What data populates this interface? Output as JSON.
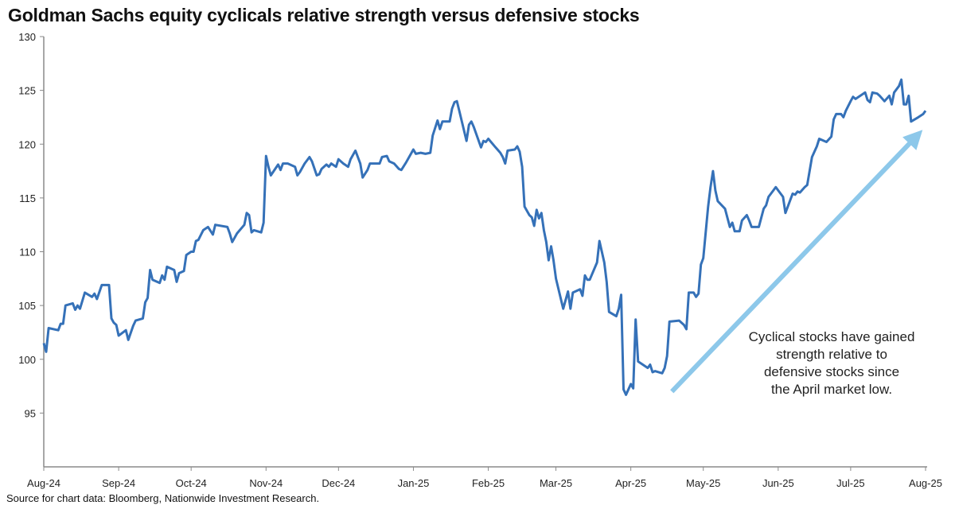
{
  "chart_data": {
    "type": "line",
    "title": "Goldman Sachs equity cyclicals relative strength versus defensive stocks",
    "xlabel": "",
    "ylabel": "",
    "ylim": [
      90,
      130
    ],
    "yticks": [
      95,
      100,
      105,
      110,
      115,
      120,
      125,
      130
    ],
    "xlim": [
      "2024-08-01",
      "2025-08-01"
    ],
    "xticks": [
      {
        "date": "2024-08-01",
        "label": "Aug-24"
      },
      {
        "date": "2024-09-01",
        "label": "Sep-24"
      },
      {
        "date": "2024-10-01",
        "label": "Oct-24"
      },
      {
        "date": "2024-11-01",
        "label": "Nov-24"
      },
      {
        "date": "2024-12-01",
        "label": "Dec-24"
      },
      {
        "date": "2025-01-01",
        "label": "Jan-25"
      },
      {
        "date": "2025-02-01",
        "label": "Feb-25"
      },
      {
        "date": "2025-03-01",
        "label": "Mar-25"
      },
      {
        "date": "2025-04-01",
        "label": "Apr-25"
      },
      {
        "date": "2025-05-01",
        "label": "May-25"
      },
      {
        "date": "2025-06-01",
        "label": "Jun-25"
      },
      {
        "date": "2025-07-01",
        "label": "Jul-25"
      },
      {
        "date": "2025-08-01",
        "label": "Aug-25"
      }
    ],
    "grid": false,
    "line_color": "#3571B8",
    "series": [
      {
        "points": [
          [
            "2024-08-01",
            101.5
          ],
          [
            "2024-08-02",
            100.7
          ],
          [
            "2024-08-03",
            102.9
          ],
          [
            "2024-08-07",
            102.7
          ],
          [
            "2024-08-08",
            103.3
          ],
          [
            "2024-08-09",
            103.3
          ],
          [
            "2024-08-10",
            105.0
          ],
          [
            "2024-08-13",
            105.2
          ],
          [
            "2024-08-14",
            104.6
          ],
          [
            "2024-08-15",
            105.0
          ],
          [
            "2024-08-16",
            104.7
          ],
          [
            "2024-08-18",
            106.2
          ],
          [
            "2024-08-21",
            105.8
          ],
          [
            "2024-08-22",
            106.1
          ],
          [
            "2024-08-23",
            105.6
          ],
          [
            "2024-08-25",
            106.9
          ],
          [
            "2024-08-28",
            106.9
          ],
          [
            "2024-08-29",
            103.8
          ],
          [
            "2024-08-30",
            103.4
          ],
          [
            "2024-08-31",
            103.2
          ],
          [
            "2024-09-01",
            102.2
          ],
          [
            "2024-09-04",
            102.7
          ],
          [
            "2024-09-05",
            101.8
          ],
          [
            "2024-09-07",
            103.1
          ],
          [
            "2024-09-08",
            103.6
          ],
          [
            "2024-09-11",
            103.8
          ],
          [
            "2024-09-12",
            105.3
          ],
          [
            "2024-09-13",
            105.7
          ],
          [
            "2024-09-14",
            108.3
          ],
          [
            "2024-09-15",
            107.4
          ],
          [
            "2024-09-18",
            107.1
          ],
          [
            "2024-09-19",
            107.8
          ],
          [
            "2024-09-20",
            107.4
          ],
          [
            "2024-09-21",
            108.6
          ],
          [
            "2024-09-24",
            108.3
          ],
          [
            "2024-09-25",
            107.2
          ],
          [
            "2024-09-26",
            108.0
          ],
          [
            "2024-09-28",
            108.2
          ],
          [
            "2024-09-29",
            109.7
          ],
          [
            "2024-10-01",
            110.0
          ],
          [
            "2024-10-02",
            110.0
          ],
          [
            "2024-10-03",
            111.0
          ],
          [
            "2024-10-04",
            111.1
          ],
          [
            "2024-10-06",
            112.0
          ],
          [
            "2024-10-08",
            112.3
          ],
          [
            "2024-10-10",
            111.6
          ],
          [
            "2024-10-11",
            112.5
          ],
          [
            "2024-10-16",
            112.3
          ],
          [
            "2024-10-17",
            111.7
          ],
          [
            "2024-10-18",
            110.9
          ],
          [
            "2024-10-20",
            111.7
          ],
          [
            "2024-10-23",
            112.5
          ],
          [
            "2024-10-24",
            113.6
          ],
          [
            "2024-10-25",
            113.4
          ],
          [
            "2024-10-26",
            111.8
          ],
          [
            "2024-10-27",
            112.0
          ],
          [
            "2024-10-30",
            111.8
          ],
          [
            "2024-10-31",
            112.7
          ],
          [
            "2024-11-01",
            118.9
          ],
          [
            "2024-11-02",
            117.9
          ],
          [
            "2024-11-03",
            117.1
          ],
          [
            "2024-11-06",
            118.1
          ],
          [
            "2024-11-07",
            117.6
          ],
          [
            "2024-11-08",
            118.2
          ],
          [
            "2024-11-10",
            118.2
          ],
          [
            "2024-11-13",
            117.9
          ],
          [
            "2024-11-14",
            117.1
          ],
          [
            "2024-11-15",
            117.4
          ],
          [
            "2024-11-17",
            118.2
          ],
          [
            "2024-11-19",
            118.8
          ],
          [
            "2024-11-20",
            118.4
          ],
          [
            "2024-11-22",
            117.1
          ],
          [
            "2024-11-23",
            117.2
          ],
          [
            "2024-11-24",
            117.7
          ],
          [
            "2024-11-26",
            118.1
          ],
          [
            "2024-11-27",
            117.9
          ],
          [
            "2024-11-28",
            118.2
          ],
          [
            "2024-11-30",
            117.9
          ],
          [
            "2024-12-01",
            118.6
          ],
          [
            "2024-12-03",
            118.2
          ],
          [
            "2024-12-05",
            117.9
          ],
          [
            "2024-12-06",
            118.6
          ],
          [
            "2024-12-08",
            119.4
          ],
          [
            "2024-12-10",
            118.2
          ],
          [
            "2024-12-11",
            116.9
          ],
          [
            "2024-12-13",
            117.6
          ],
          [
            "2024-12-14",
            118.2
          ],
          [
            "2024-12-18",
            118.2
          ],
          [
            "2024-12-19",
            118.8
          ],
          [
            "2024-12-21",
            118.9
          ],
          [
            "2024-12-22",
            118.4
          ],
          [
            "2024-12-24",
            118.2
          ],
          [
            "2024-12-26",
            117.7
          ],
          [
            "2024-12-27",
            117.6
          ],
          [
            "2024-12-29",
            118.3
          ],
          [
            "2025-01-01",
            119.5
          ],
          [
            "2025-01-02",
            119.1
          ],
          [
            "2025-01-04",
            119.2
          ],
          [
            "2025-01-06",
            119.1
          ],
          [
            "2025-01-08",
            119.2
          ],
          [
            "2025-01-09",
            120.8
          ],
          [
            "2025-01-11",
            122.2
          ],
          [
            "2025-01-12",
            121.4
          ],
          [
            "2025-01-13",
            122.1
          ],
          [
            "2025-01-16",
            122.1
          ],
          [
            "2025-01-17",
            123.3
          ],
          [
            "2025-01-18",
            123.9
          ],
          [
            "2025-01-19",
            124.0
          ],
          [
            "2025-01-20",
            123.1
          ],
          [
            "2025-01-23",
            120.3
          ],
          [
            "2025-01-24",
            121.8
          ],
          [
            "2025-01-25",
            122.1
          ],
          [
            "2025-01-26",
            121.6
          ],
          [
            "2025-01-29",
            119.7
          ],
          [
            "2025-01-30",
            120.3
          ],
          [
            "2025-01-31",
            120.2
          ],
          [
            "2025-02-01",
            120.5
          ],
          [
            "2025-02-04",
            119.7
          ],
          [
            "2025-02-06",
            119.2
          ],
          [
            "2025-02-07",
            118.8
          ],
          [
            "2025-02-08",
            118.2
          ],
          [
            "2025-02-09",
            119.4
          ],
          [
            "2025-02-12",
            119.5
          ],
          [
            "2025-02-13",
            119.8
          ],
          [
            "2025-02-14",
            119.3
          ],
          [
            "2025-02-15",
            117.9
          ],
          [
            "2025-02-16",
            114.2
          ],
          [
            "2025-02-18",
            113.4
          ],
          [
            "2025-02-19",
            113.2
          ],
          [
            "2025-02-20",
            112.4
          ],
          [
            "2025-02-21",
            113.9
          ],
          [
            "2025-02-22",
            113.1
          ],
          [
            "2025-02-23",
            113.6
          ],
          [
            "2025-02-24",
            112.0
          ],
          [
            "2025-02-25",
            110.9
          ],
          [
            "2025-02-26",
            109.2
          ],
          [
            "2025-02-27",
            110.5
          ],
          [
            "2025-02-28",
            109.2
          ],
          [
            "2025-03-01",
            107.5
          ],
          [
            "2025-03-04",
            104.7
          ],
          [
            "2025-03-06",
            106.3
          ],
          [
            "2025-03-07",
            104.7
          ],
          [
            "2025-03-08",
            106.2
          ],
          [
            "2025-03-11",
            106.5
          ],
          [
            "2025-03-12",
            105.9
          ],
          [
            "2025-03-13",
            107.8
          ],
          [
            "2025-03-14",
            107.4
          ],
          [
            "2025-03-15",
            107.4
          ],
          [
            "2025-03-18",
            109.0
          ],
          [
            "2025-03-19",
            111.0
          ],
          [
            "2025-03-21",
            109.0
          ],
          [
            "2025-03-22",
            107.2
          ],
          [
            "2025-03-23",
            104.4
          ],
          [
            "2025-03-26",
            104.0
          ],
          [
            "2025-03-27",
            104.7
          ],
          [
            "2025-03-28",
            106.0
          ],
          [
            "2025-03-29",
            97.2
          ],
          [
            "2025-03-30",
            96.7
          ],
          [
            "2025-04-01",
            97.7
          ],
          [
            "2025-04-02",
            97.3
          ],
          [
            "2025-04-03",
            103.7
          ],
          [
            "2025-04-04",
            99.8
          ],
          [
            "2025-04-08",
            99.2
          ],
          [
            "2025-04-09",
            99.5
          ],
          [
            "2025-04-10",
            98.8
          ],
          [
            "2025-04-11",
            98.9
          ],
          [
            "2025-04-14",
            98.7
          ],
          [
            "2025-04-15",
            99.2
          ],
          [
            "2025-04-16",
            100.3
          ],
          [
            "2025-04-17",
            103.5
          ],
          [
            "2025-04-21",
            103.6
          ],
          [
            "2025-04-23",
            103.2
          ],
          [
            "2025-04-24",
            102.8
          ],
          [
            "2025-04-25",
            106.2
          ],
          [
            "2025-04-27",
            106.2
          ],
          [
            "2025-04-28",
            105.8
          ],
          [
            "2025-04-29",
            106.1
          ],
          [
            "2025-04-30",
            108.8
          ],
          [
            "2025-05-01",
            109.4
          ],
          [
            "2025-05-03",
            114.2
          ],
          [
            "2025-05-04",
            116.0
          ],
          [
            "2025-05-05",
            117.5
          ],
          [
            "2025-05-06",
            115.7
          ],
          [
            "2025-05-07",
            114.7
          ],
          [
            "2025-05-10",
            114.0
          ],
          [
            "2025-05-12",
            112.3
          ],
          [
            "2025-05-13",
            112.7
          ],
          [
            "2025-05-14",
            111.9
          ],
          [
            "2025-05-16",
            111.9
          ],
          [
            "2025-05-17",
            112.9
          ],
          [
            "2025-05-19",
            113.4
          ],
          [
            "2025-05-20",
            112.9
          ],
          [
            "2025-05-21",
            112.3
          ],
          [
            "2025-05-24",
            112.3
          ],
          [
            "2025-05-26",
            114.0
          ],
          [
            "2025-05-27",
            114.3
          ],
          [
            "2025-05-28",
            115.1
          ],
          [
            "2025-05-30",
            115.7
          ],
          [
            "2025-05-31",
            116.0
          ],
          [
            "2025-06-01",
            115.7
          ],
          [
            "2025-06-03",
            115.1
          ],
          [
            "2025-06-04",
            113.6
          ],
          [
            "2025-06-07",
            115.4
          ],
          [
            "2025-06-08",
            115.3
          ],
          [
            "2025-06-09",
            115.6
          ],
          [
            "2025-06-10",
            115.5
          ],
          [
            "2025-06-12",
            116.0
          ],
          [
            "2025-06-13",
            116.2
          ],
          [
            "2025-06-15",
            118.8
          ],
          [
            "2025-06-17",
            119.8
          ],
          [
            "2025-06-18",
            120.5
          ],
          [
            "2025-06-21",
            120.2
          ],
          [
            "2025-06-23",
            120.7
          ],
          [
            "2025-06-24",
            122.3
          ],
          [
            "2025-06-25",
            122.8
          ],
          [
            "2025-06-27",
            122.8
          ],
          [
            "2025-06-28",
            122.5
          ],
          [
            "2025-06-29",
            123.1
          ],
          [
            "2025-07-01",
            124.0
          ],
          [
            "2025-07-02",
            124.4
          ],
          [
            "2025-07-03",
            124.2
          ],
          [
            "2025-07-05",
            124.5
          ],
          [
            "2025-07-07",
            124.8
          ],
          [
            "2025-07-08",
            124.1
          ],
          [
            "2025-07-09",
            123.9
          ],
          [
            "2025-07-10",
            124.8
          ],
          [
            "2025-07-12",
            124.7
          ],
          [
            "2025-07-13",
            124.5
          ],
          [
            "2025-07-15",
            124.0
          ],
          [
            "2025-07-17",
            124.5
          ],
          [
            "2025-07-18",
            123.7
          ],
          [
            "2025-07-19",
            124.8
          ],
          [
            "2025-07-21",
            125.4
          ],
          [
            "2025-07-22",
            126.0
          ],
          [
            "2025-07-23",
            123.7
          ],
          [
            "2025-07-24",
            123.7
          ],
          [
            "2025-07-25",
            124.5
          ],
          [
            "2025-07-26",
            122.1
          ],
          [
            "2025-07-29",
            122.5
          ],
          [
            "2025-07-31",
            122.8
          ],
          [
            "2025-08-01",
            123.1
          ]
        ]
      }
    ],
    "annotation": {
      "lines": [
        "Cyclical stocks have gained",
        "strength relative to",
        "defensive stocks since",
        "the April market low."
      ],
      "arrow_color": "#8DC8EA",
      "arrow_from": [
        "2025-04-18",
        97
      ],
      "arrow_to": [
        "2025-08-01",
        121.5
      ]
    }
  },
  "source": "Source for chart data: Bloomberg, Nationwide Investment Research."
}
